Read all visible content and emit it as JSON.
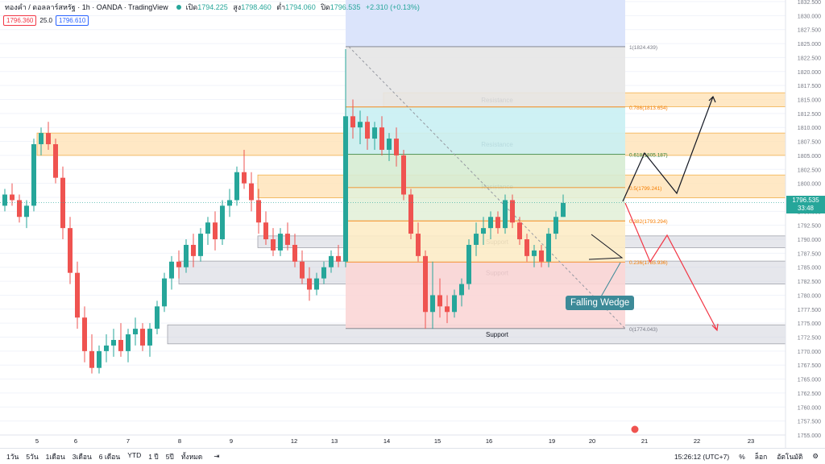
{
  "header": {
    "title": "ทองคำ / ดอลลาร์สหรัฐ · 1h · OANDA · TradingView",
    "open_label": "เปิด",
    "open": "1794.225",
    "high_label": "สูง",
    "high": "1798.460",
    "low_label": "ต่ำ",
    "low": "1794.060",
    "close_label": "ปิด",
    "close": "1796.535",
    "change": "+2.310 (+0.13%)",
    "sell_badge": "1796.360",
    "spread": "25.0",
    "buy_badge": "1796.610"
  },
  "price_tag": {
    "price": "1796.535",
    "countdown": "33:48"
  },
  "wedge_label": "Falling Wedge",
  "bottom_bar": {
    "timeframes": [
      "1วัน",
      "5วัน",
      "1เดือน",
      "3เดือน",
      "6 เดือน",
      "YTD",
      "1 ปี",
      "5ปี",
      "ทั้งหมด"
    ],
    "clock": "15:26:12 (UTC+7)",
    "percent": "%",
    "log": "ล็อก",
    "auto": "อัตโนมัติ"
  },
  "chart_data": {
    "type": "candlestick",
    "y_axis": {
      "min": 1755.0,
      "max": 1832.5,
      "step": 2.5,
      "ticks": [
        "1832.500",
        "1830.000",
        "1827.500",
        "1825.000",
        "1822.500",
        "1820.000",
        "1817.500",
        "1815.000",
        "1812.500",
        "1810.000",
        "1807.500",
        "1805.000",
        "1802.500",
        "1800.000",
        "1797.500",
        "1795.000",
        "1792.500",
        "1790.000",
        "1787.500",
        "1785.000",
        "1782.500",
        "1780.000",
        "1777.500",
        "1775.000",
        "1772.500",
        "1770.000",
        "1767.500",
        "1765.000",
        "1762.500",
        "1760.000",
        "1757.500",
        "1755.000"
      ]
    },
    "x_axis": {
      "ticks": [
        {
          "label": "5",
          "index": 4
        },
        {
          "label": "6",
          "index": 11
        },
        {
          "label": "7",
          "index": 18
        },
        {
          "label": "8",
          "index": 25
        },
        {
          "label": "9",
          "index": 32
        },
        {
          "label": "12",
          "index": 40
        },
        {
          "label": "13",
          "index": 47
        },
        {
          "label": "14",
          "index": 54
        },
        {
          "label": "15",
          "index": 61
        },
        {
          "label": "16",
          "index": 68
        },
        {
          "label": "19",
          "index": 76
        },
        {
          "label": "20",
          "index": 83
        },
        {
          "label": "21",
          "index": 90
        },
        {
          "label": "22",
          "index": 97
        },
        {
          "label": "23",
          "index": 104
        }
      ]
    },
    "candles": [
      [
        1796,
        1799,
        1795,
        1798
      ],
      [
        1798,
        1800,
        1796,
        1797
      ],
      [
        1797,
        1798,
        1793,
        1794
      ],
      [
        1794,
        1797,
        1792,
        1796
      ],
      [
        1796,
        1808,
        1795,
        1807
      ],
      [
        1807,
        1810,
        1805,
        1809
      ],
      [
        1809,
        1811,
        1806,
        1807
      ],
      [
        1807,
        1808,
        1800,
        1801
      ],
      [
        1801,
        1803,
        1790,
        1792
      ],
      [
        1792,
        1794,
        1782,
        1784
      ],
      [
        1784,
        1786,
        1774,
        1776
      ],
      [
        1776,
        1778,
        1768,
        1770
      ],
      [
        1770,
        1773,
        1766,
        1767
      ],
      [
        1767,
        1771,
        1766,
        1770
      ],
      [
        1770,
        1773,
        1768,
        1771
      ],
      [
        1771,
        1774,
        1769,
        1772
      ],
      [
        1772,
        1775,
        1769,
        1770
      ],
      [
        1770,
        1774,
        1768,
        1773
      ],
      [
        1773,
        1776,
        1771,
        1774
      ],
      [
        1774,
        1775,
        1770,
        1771
      ],
      [
        1771,
        1775,
        1769,
        1774
      ],
      [
        1774,
        1779,
        1773,
        1778
      ],
      [
        1778,
        1784,
        1777,
        1783
      ],
      [
        1783,
        1787,
        1781,
        1786
      ],
      [
        1786,
        1788,
        1783,
        1785
      ],
      [
        1785,
        1790,
        1784,
        1789
      ],
      [
        1789,
        1791,
        1785,
        1787
      ],
      [
        1787,
        1792,
        1786,
        1791
      ],
      [
        1791,
        1794,
        1789,
        1793
      ],
      [
        1793,
        1795,
        1788,
        1790
      ],
      [
        1790,
        1797,
        1789,
        1796
      ],
      [
        1796,
        1799,
        1794,
        1797
      ],
      [
        1797,
        1803,
        1796,
        1802
      ],
      [
        1802,
        1806,
        1799,
        1800
      ],
      [
        1800,
        1802,
        1795,
        1797
      ],
      [
        1797,
        1799,
        1791,
        1793
      ],
      [
        1793,
        1795,
        1789,
        1790
      ],
      [
        1790,
        1792,
        1787,
        1788
      ],
      [
        1788,
        1792,
        1787,
        1791
      ],
      [
        1791,
        1793,
        1788,
        1789
      ],
      [
        1789,
        1791,
        1785,
        1786
      ],
      [
        1786,
        1788,
        1782,
        1783
      ],
      [
        1783,
        1785,
        1779,
        1781
      ],
      [
        1781,
        1784,
        1780,
        1783
      ],
      [
        1783,
        1786,
        1782,
        1785
      ],
      [
        1785,
        1788,
        1784,
        1787
      ],
      [
        1787,
        1789,
        1785,
        1786
      ],
      [
        1786,
        1824,
        1785,
        1812
      ],
      [
        1812,
        1815,
        1808,
        1810
      ],
      [
        1810,
        1813,
        1807,
        1811
      ],
      [
        1811,
        1812,
        1806,
        1808
      ],
      [
        1808,
        1811,
        1806,
        1810
      ],
      [
        1810,
        1812,
        1805,
        1806
      ],
      [
        1806,
        1809,
        1804,
        1808
      ],
      [
        1808,
        1810,
        1803,
        1805
      ],
      [
        1805,
        1806,
        1797,
        1798
      ],
      [
        1798,
        1799,
        1790,
        1791
      ],
      [
        1791,
        1793,
        1786,
        1787
      ],
      [
        1787,
        1788,
        1774,
        1777
      ],
      [
        1777,
        1786,
        1774,
        1780
      ],
      [
        1780,
        1783,
        1776,
        1778
      ],
      [
        1778,
        1780,
        1775,
        1777
      ],
      [
        1777,
        1781,
        1776,
        1780
      ],
      [
        1780,
        1783,
        1778,
        1782
      ],
      [
        1782,
        1790,
        1781,
        1789
      ],
      [
        1789,
        1793,
        1787,
        1791
      ],
      [
        1791,
        1794,
        1789,
        1792
      ],
      [
        1792,
        1795,
        1790,
        1794
      ],
      [
        1794,
        1795,
        1791,
        1792
      ],
      [
        1792,
        1798,
        1791,
        1797
      ],
      [
        1797,
        1798,
        1792,
        1793
      ],
      [
        1793,
        1794,
        1789,
        1790
      ],
      [
        1790,
        1791,
        1786,
        1787
      ],
      [
        1787,
        1789,
        1785,
        1788
      ],
      [
        1788,
        1789,
        1785,
        1786
      ],
      [
        1786,
        1792,
        1785,
        1791
      ],
      [
        1791,
        1795,
        1790,
        1794
      ],
      [
        1794,
        1798,
        1794,
        1796.5
      ]
    ],
    "zones": [
      {
        "label": "Resistance",
        "from": 1813.7,
        "to": 1816.2,
        "color": "#ffe0b2"
      },
      {
        "label": "Resistance",
        "from": 1805.0,
        "to": 1809.0,
        "color": "#ffe0b2"
      },
      {
        "label": "Resistance",
        "from": 1797.4,
        "to": 1801.5,
        "color": "#ffe0b2"
      },
      {
        "label": "Support",
        "from": 1788.5,
        "to": 1790.6,
        "color": "#d1d4dc"
      },
      {
        "label": "Support",
        "from": 1782.0,
        "to": 1786.1,
        "color": "#d1d4dc"
      },
      {
        "label": "Support",
        "from": 1771.3,
        "to": 1774.7,
        "color": "#d1d4dc"
      }
    ],
    "fibonacci": [
      {
        "label": "1(1824.439)",
        "level": 1824.439
      },
      {
        "label": "0.786(1813.654)",
        "level": 1813.654
      },
      {
        "label": "0.618(1805.187)",
        "level": 1805.187
      },
      {
        "label": "0.5(1799.241)",
        "level": 1799.241
      },
      {
        "label": "0.382(1793.294)",
        "level": 1793.294
      },
      {
        "label": "0.236(1785.936)",
        "level": 1785.936
      },
      {
        "label": "0(1774.043)",
        "level": 1774.043
      }
    ],
    "colors": {
      "up": "#26a69a",
      "down": "#ef5350",
      "axis": "#787b86",
      "grid": "#f0f3fa"
    }
  }
}
